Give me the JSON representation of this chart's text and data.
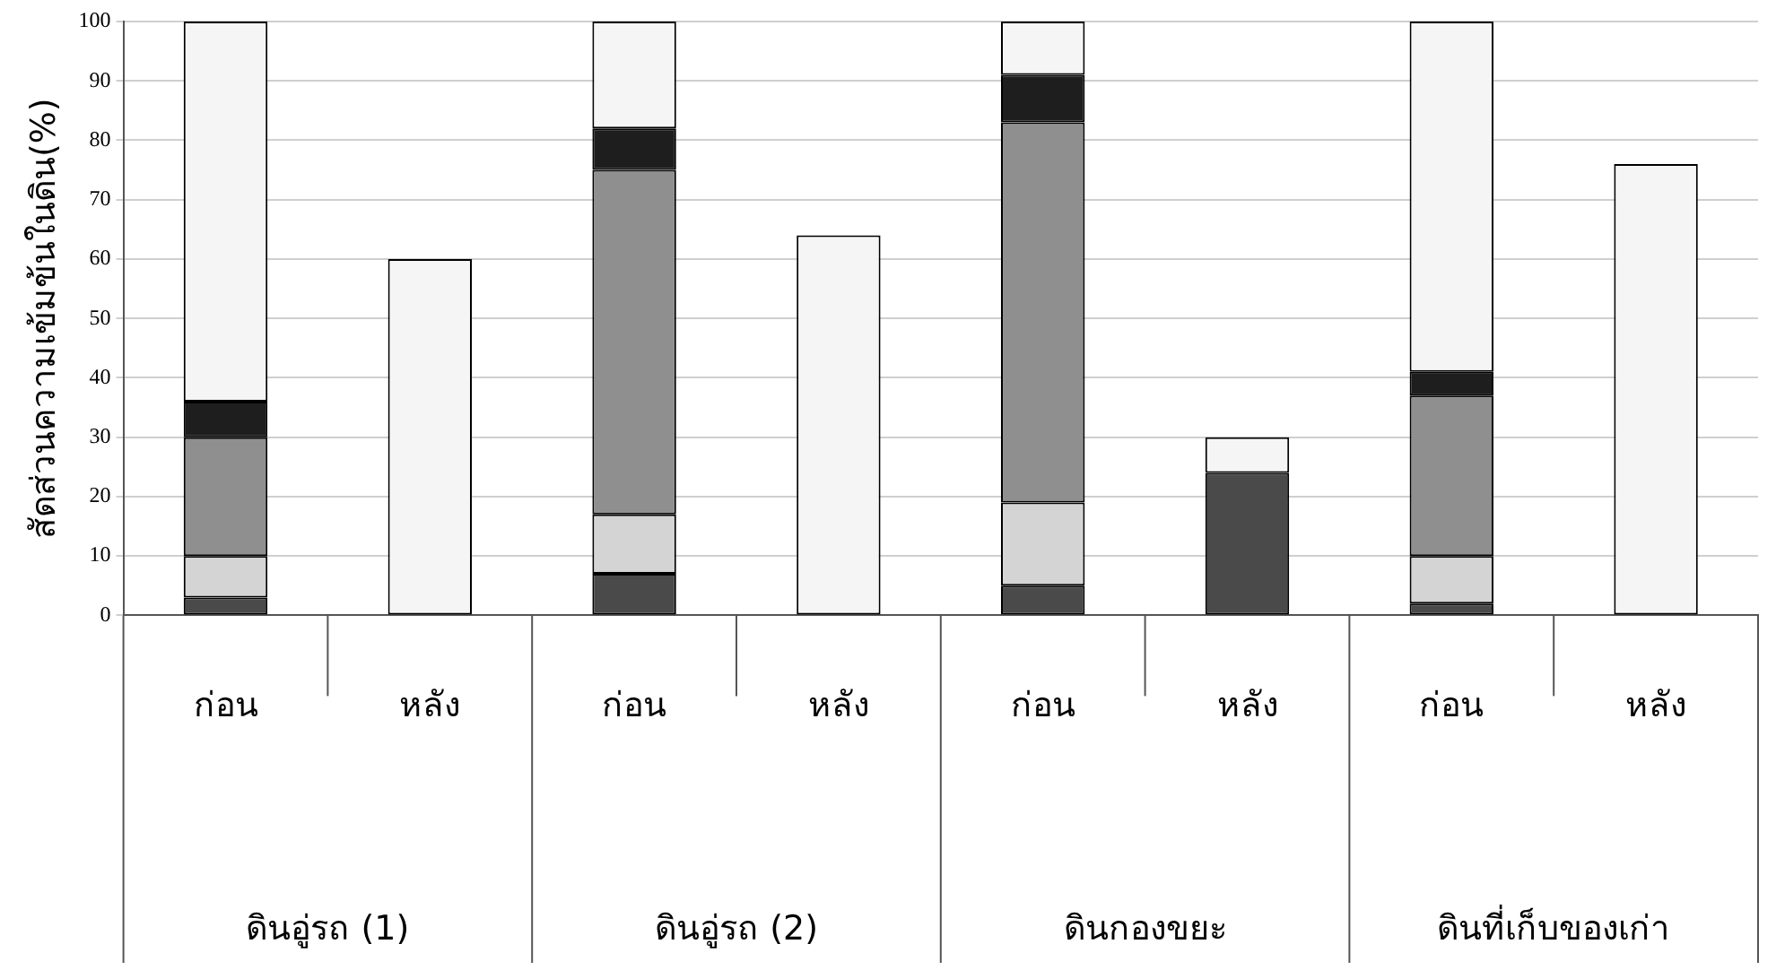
{
  "chart_data": {
    "type": "bar",
    "stacked": true,
    "ylabel": "สัดส่วนความเข้มข้นในดิน(%)",
    "categories": [
      "ก่อน",
      "หลัง",
      "ก่อน",
      "หลัง",
      "ก่อน",
      "หลัง",
      "ก่อน",
      "หลัง"
    ],
    "annotations": [
      "ดินอู่รถ (1)",
      "ดินอู่รถ (2)",
      "ดินกองขยะ",
      "ดินที่เก็บของเก่า"
    ],
    "series": [
      {
        "color": "#4a4a4a",
        "values": [
          3,
          null,
          7,
          null,
          5,
          24,
          2,
          null
        ]
      },
      {
        "color": "#d4d4d4",
        "values": [
          7,
          null,
          10,
          null,
          14,
          null,
          8,
          null
        ]
      },
      {
        "color": "#8f8f8f",
        "values": [
          20,
          null,
          58,
          null,
          64,
          null,
          27,
          null
        ]
      },
      {
        "color": "#1e1e1e",
        "values": [
          6,
          null,
          7,
          null,
          8,
          null,
          4,
          null
        ]
      },
      {
        "color": "#f5f5f5",
        "values": [
          64,
          60,
          18,
          64,
          9,
          6,
          59,
          76
        ]
      }
    ],
    "ylim": [
      0,
      100
    ],
    "yticks": [
      0,
      10,
      20,
      30,
      40,
      50,
      60,
      70,
      80,
      90,
      100
    ],
    "grid": "y",
    "legend": false
  }
}
